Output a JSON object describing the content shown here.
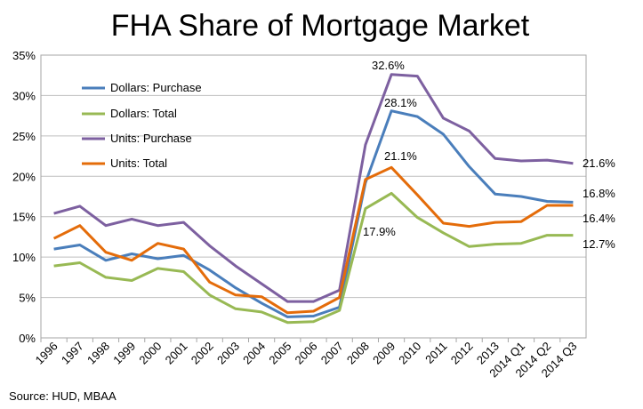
{
  "chart_data": {
    "type": "line",
    "title": "FHA Share of Mortgage Market",
    "source": "Source: HUD, MBAA",
    "xlabel": "",
    "ylabel": "",
    "ylim": [
      0,
      35
    ],
    "yticks": [
      0,
      5,
      10,
      15,
      20,
      25,
      30,
      35
    ],
    "ytick_labels": [
      "0%",
      "5%",
      "10%",
      "15%",
      "20%",
      "25%",
      "30%",
      "35%"
    ],
    "grid": true,
    "legend_position": "top-left",
    "categories": [
      "1996",
      "1997",
      "1998",
      "1999",
      "2000",
      "2001",
      "2002",
      "2003",
      "2004",
      "2005",
      "2006",
      "2007",
      "2008",
      "2009",
      "2010",
      "2011",
      "2012",
      "2013",
      "2014 Q1",
      "2014 Q2",
      "2014 Q3"
    ],
    "series": [
      {
        "name": "Dollars: Purchase",
        "color": "#4a7ebb",
        "values": [
          11.0,
          11.5,
          9.6,
          10.4,
          9.8,
          10.2,
          8.4,
          6.2,
          4.3,
          2.6,
          2.7,
          3.8,
          19.2,
          28.1,
          27.4,
          25.2,
          21.2,
          17.8,
          17.5,
          16.9,
          16.8
        ]
      },
      {
        "name": "Dollars: Total",
        "color": "#98b954",
        "values": [
          8.9,
          9.3,
          7.5,
          7.1,
          8.6,
          8.2,
          5.3,
          3.6,
          3.2,
          1.9,
          2.0,
          3.4,
          16.0,
          17.9,
          14.9,
          13.0,
          11.3,
          11.6,
          11.7,
          12.7,
          12.7
        ]
      },
      {
        "name": "Units: Purchase",
        "color": "#7d60a0",
        "values": [
          15.4,
          16.3,
          13.9,
          14.7,
          13.9,
          14.3,
          11.4,
          8.9,
          6.7,
          4.5,
          4.5,
          5.9,
          23.9,
          32.6,
          32.4,
          27.2,
          25.6,
          22.2,
          21.9,
          22.0,
          21.6
        ]
      },
      {
        "name": "Units: Total",
        "color": "#e46c0a",
        "values": [
          12.3,
          13.9,
          10.6,
          9.6,
          11.7,
          11.0,
          6.9,
          5.3,
          5.1,
          3.1,
          3.3,
          5.0,
          19.6,
          21.1,
          17.7,
          14.2,
          13.8,
          14.3,
          14.4,
          16.4,
          16.4
        ]
      }
    ],
    "annotations": [
      "32.6%",
      "28.1%",
      "21.1%",
      "17.9%",
      "21.6%",
      "16.8%",
      "16.4%",
      "12.7%"
    ]
  }
}
